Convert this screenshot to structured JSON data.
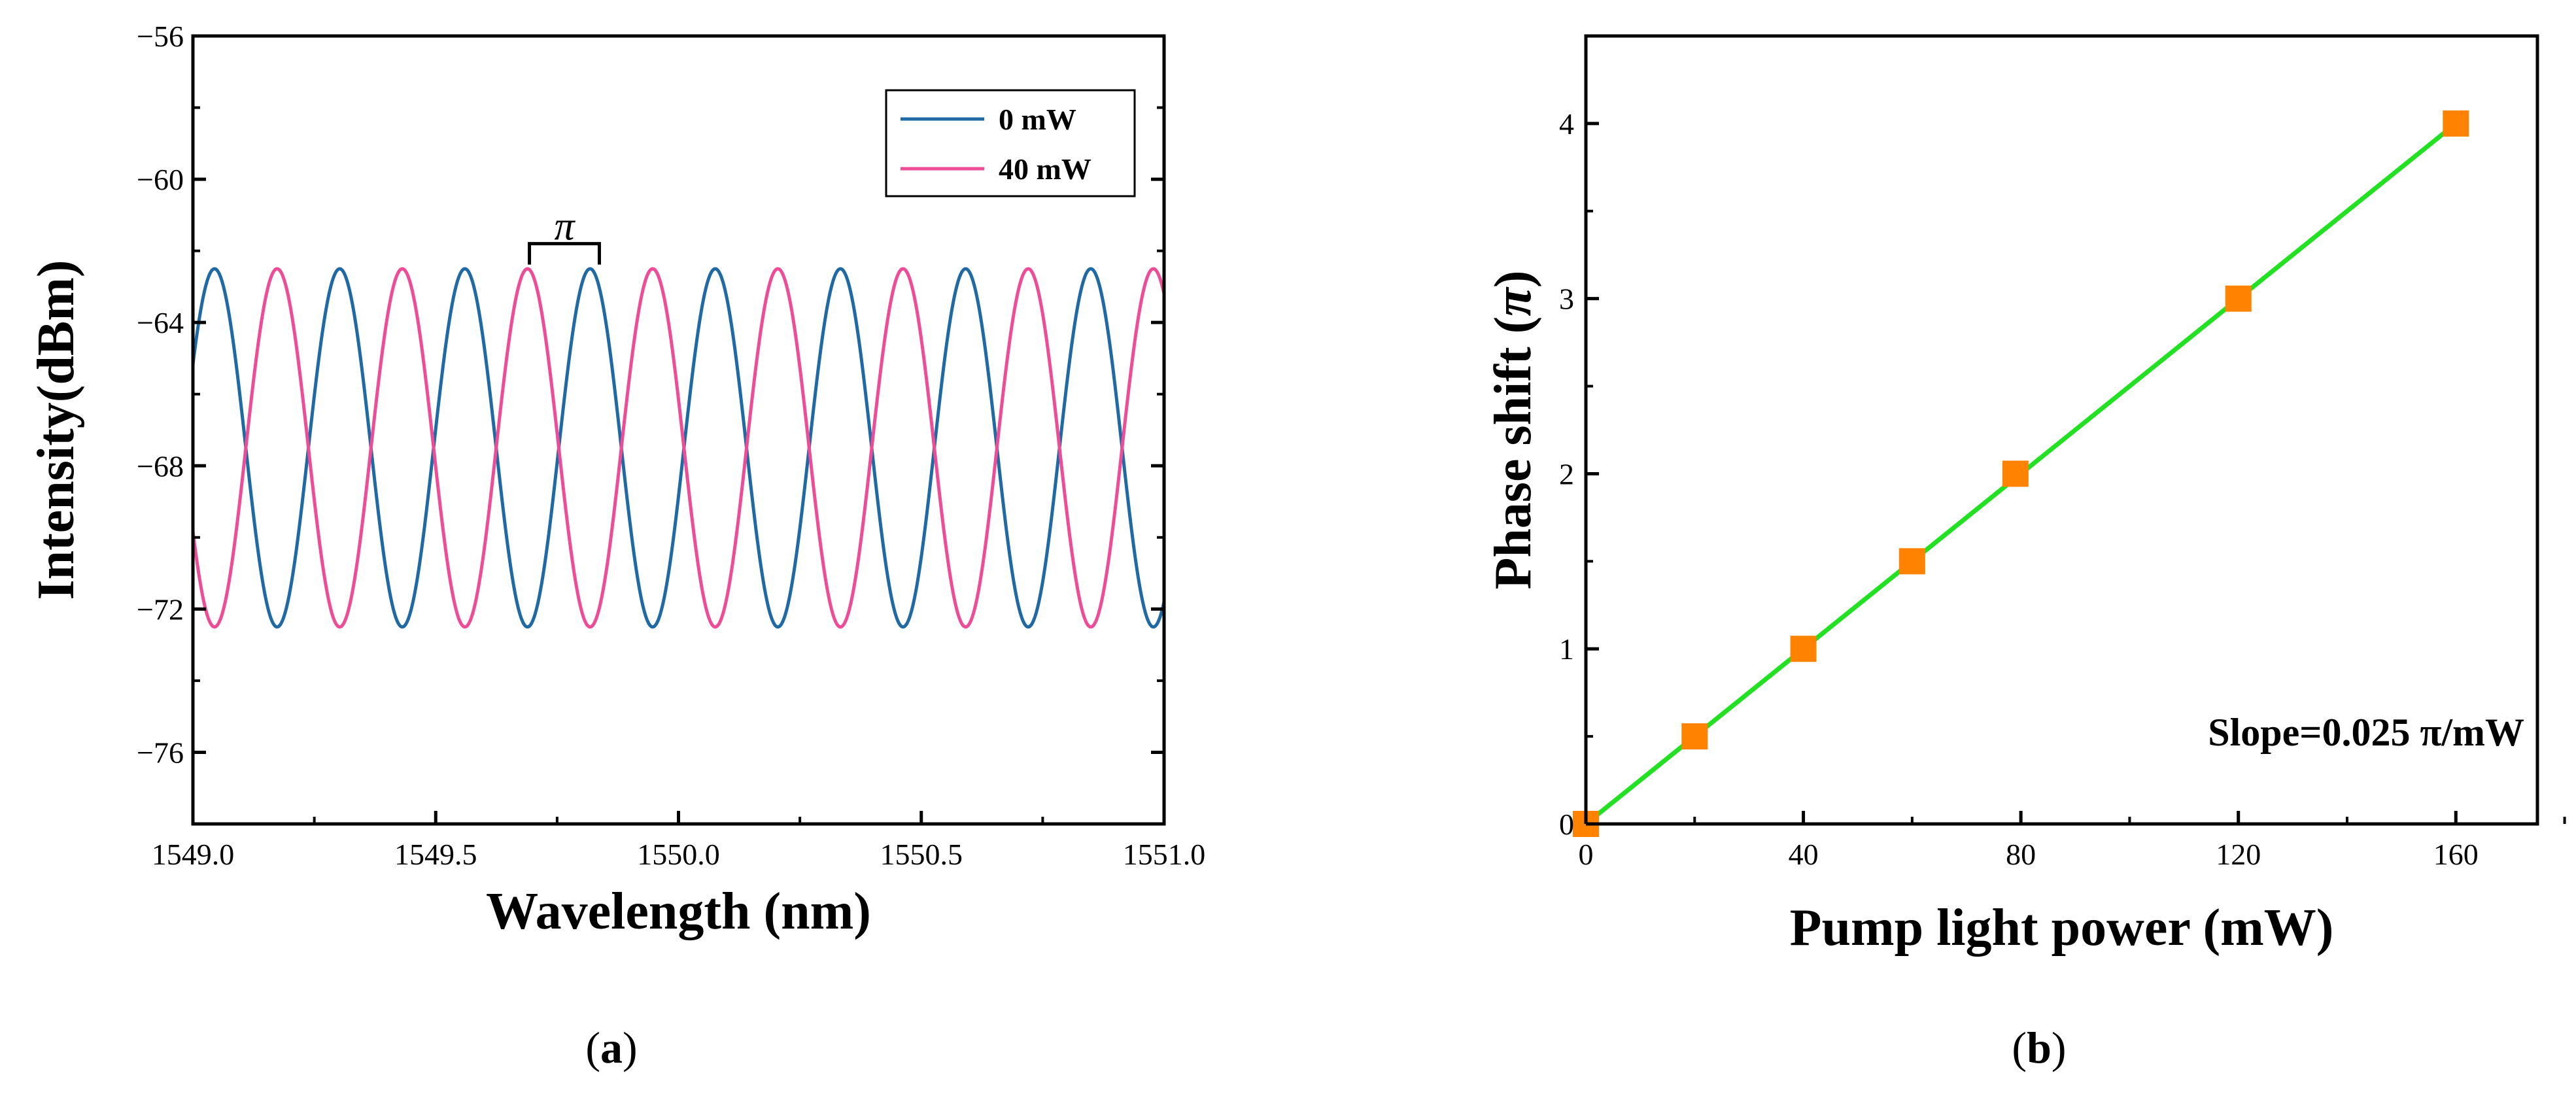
{
  "chart_data": [
    {
      "id": "a",
      "type": "line",
      "panel_label_open": "(",
      "panel_label": "a",
      "panel_label_close": ")",
      "xlabel": "Wavelength (nm)",
      "ylabel": "Intensity(dBm)",
      "xlim": [
        1549.0,
        1551.0
      ],
      "ylim": [
        -78,
        -56
      ],
      "xticks": [
        1549.0,
        1549.5,
        1550.0,
        1550.5,
        1551.0
      ],
      "xtick_labels": [
        "1549.0",
        "1549.5",
        "1550.0",
        "1550.5",
        "1551.0"
      ],
      "yticks": [
        -76,
        -72,
        -68,
        -64,
        -60,
        -56
      ],
      "ytick_labels": [
        "−76",
        "−72",
        "−68",
        "−64",
        "−60",
        "−56"
      ],
      "legend_position": "top-right",
      "series": [
        {
          "name": "0 mW",
          "color": "#1f6aa5",
          "period_nm": 0.2578,
          "peak_nm": 1549.0445,
          "max_dBm": -62.5,
          "min_dBm": -72.5
        },
        {
          "name": "40 mW",
          "color": "#ee4c97",
          "period_nm": 0.2578,
          "peak_nm": 1549.1734,
          "max_dBm": -62.5,
          "min_dBm": -72.5
        }
      ],
      "annotation": {
        "text": "π",
        "x_start": 1549.693,
        "x_end": 1549.837,
        "y": -61.8
      }
    },
    {
      "id": "b",
      "type": "scatter",
      "panel_label_open": "(",
      "panel_label": "b",
      "panel_label_close": ")",
      "xlabel": "Pump light power (mW)",
      "ylabel_main": "Phase shift  (",
      "ylabel_symbol": "π",
      "ylabel_close": ")",
      "xlim": [
        0,
        175
      ],
      "ylim": [
        0,
        4.5
      ],
      "xticks": [
        0,
        40,
        80,
        120,
        160
      ],
      "xtick_labels": [
        "0",
        "40",
        "80",
        "120",
        "160"
      ],
      "yticks": [
        0,
        1,
        2,
        3,
        4
      ],
      "ytick_labels": [
        "0",
        "1",
        "2",
        "3",
        "4"
      ],
      "series": [
        {
          "name": "Phase shift",
          "marker_color": "#ff8200",
          "x": [
            0,
            20,
            40,
            60,
            79,
            120,
            160
          ],
          "y": [
            0,
            0.5,
            1.0,
            1.5,
            2.0,
            3.0,
            4.0
          ]
        }
      ],
      "fit": {
        "color": "#22e022",
        "slope": 0.025,
        "intercept": 0,
        "x_range": [
          0,
          160
        ]
      },
      "annotation": {
        "text": "Slope=0.025 π/mW"
      }
    }
  ]
}
